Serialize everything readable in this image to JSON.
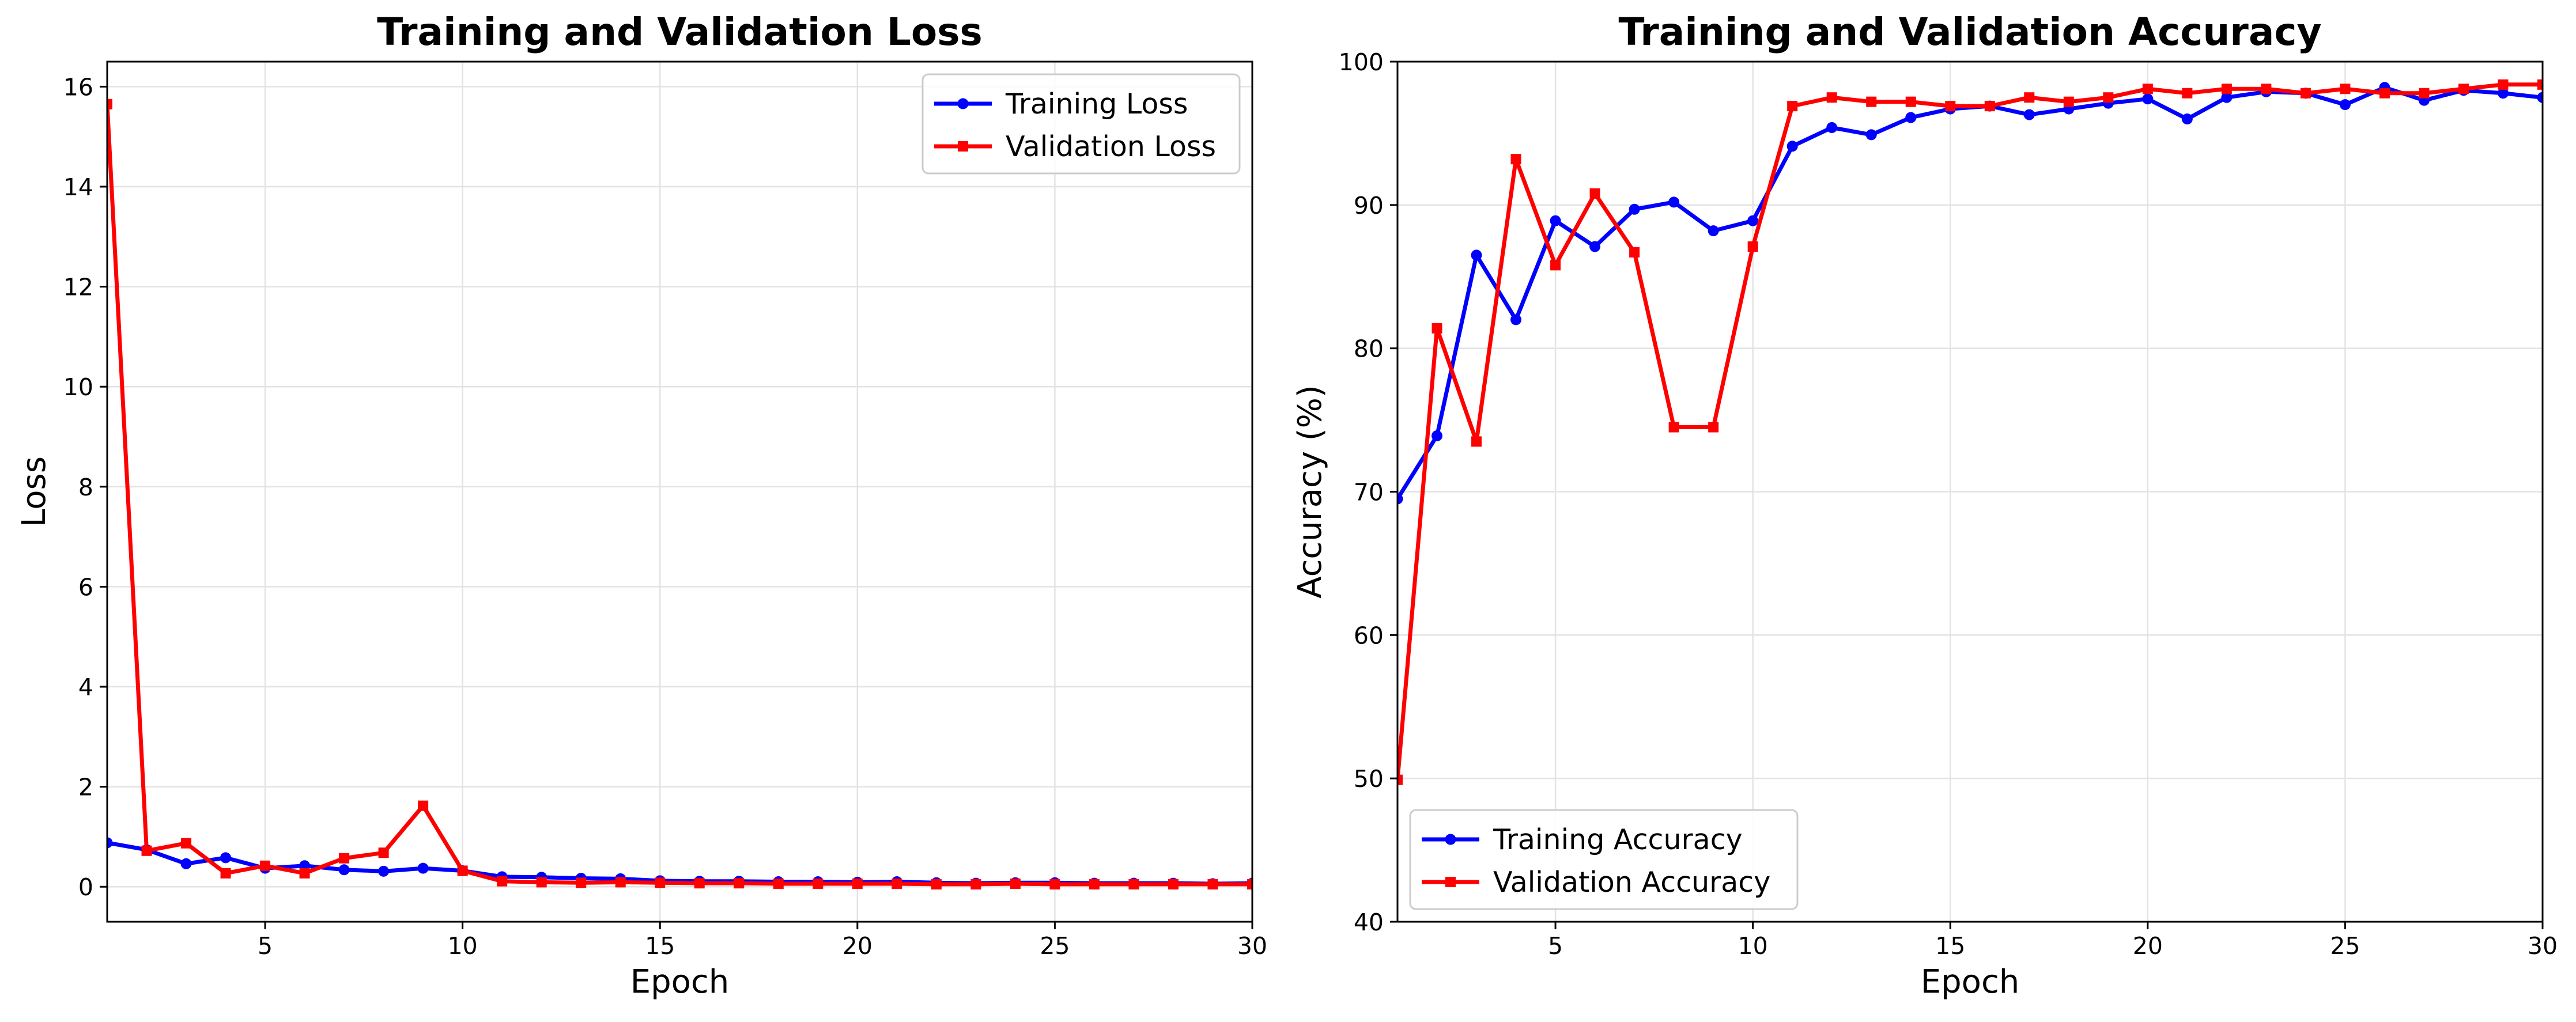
{
  "figure": {
    "panels": [
      {
        "title": "Training and Validation Loss"
      },
      {
        "title": "Training and Validation Accuracy"
      }
    ]
  },
  "chart_data": [
    {
      "type": "line",
      "title": "Training and Validation Loss",
      "xlabel": "Epoch",
      "ylabel": "Loss",
      "xlim": [
        1,
        30
      ],
      "ylim": [
        -0.7,
        16.5
      ],
      "xticks": [
        5,
        10,
        15,
        20,
        25,
        30
      ],
      "yticks": [
        0,
        2,
        4,
        6,
        8,
        10,
        12,
        14,
        16
      ],
      "grid": true,
      "legend": "top-right",
      "x": [
        1,
        2,
        3,
        4,
        5,
        6,
        7,
        8,
        9,
        10,
        11,
        12,
        13,
        14,
        15,
        16,
        17,
        18,
        19,
        20,
        21,
        22,
        23,
        24,
        25,
        26,
        27,
        28,
        29,
        30
      ],
      "series": [
        {
          "name": "Training Loss",
          "color": "#0000ff",
          "marker": "circle",
          "values": [
            0.88,
            0.74,
            0.46,
            0.58,
            0.37,
            0.42,
            0.34,
            0.31,
            0.37,
            0.32,
            0.2,
            0.19,
            0.17,
            0.16,
            0.12,
            0.11,
            0.11,
            0.1,
            0.1,
            0.09,
            0.1,
            0.08,
            0.07,
            0.08,
            0.08,
            0.07,
            0.07,
            0.07,
            0.06,
            0.07
          ]
        },
        {
          "name": "Validation Loss",
          "color": "#ff0000",
          "marker": "square",
          "values": [
            15.65,
            0.72,
            0.87,
            0.27,
            0.42,
            0.27,
            0.57,
            0.68,
            1.62,
            0.32,
            0.11,
            0.09,
            0.08,
            0.09,
            0.08,
            0.07,
            0.07,
            0.06,
            0.06,
            0.06,
            0.06,
            0.05,
            0.05,
            0.06,
            0.05,
            0.05,
            0.05,
            0.05,
            0.05,
            0.05
          ]
        }
      ]
    },
    {
      "type": "line",
      "title": "Training and Validation Accuracy",
      "xlabel": "Epoch",
      "ylabel": "Accuracy (%)",
      "xlim": [
        1,
        30
      ],
      "ylim": [
        40,
        100
      ],
      "xticks": [
        5,
        10,
        15,
        20,
        25,
        30
      ],
      "yticks": [
        40,
        50,
        60,
        70,
        80,
        90,
        100
      ],
      "grid": true,
      "legend": "bottom-left",
      "x": [
        1,
        2,
        3,
        4,
        5,
        6,
        7,
        8,
        9,
        10,
        11,
        12,
        13,
        14,
        15,
        16,
        17,
        18,
        19,
        20,
        21,
        22,
        23,
        24,
        25,
        26,
        27,
        28,
        29,
        30
      ],
      "series": [
        {
          "name": "Training Accuracy",
          "color": "#0000ff",
          "marker": "circle",
          "values": [
            69.5,
            73.9,
            86.5,
            82.0,
            88.9,
            87.1,
            89.7,
            90.2,
            88.2,
            88.9,
            94.1,
            95.4,
            94.9,
            96.1,
            96.7,
            96.9,
            96.3,
            96.7,
            97.1,
            97.4,
            96.0,
            97.5,
            97.9,
            97.8,
            97.0,
            98.2,
            97.3,
            98.0,
            97.8,
            97.5
          ]
        },
        {
          "name": "Validation Accuracy",
          "color": "#ff0000",
          "marker": "square",
          "values": [
            49.9,
            81.4,
            73.5,
            93.2,
            85.8,
            90.8,
            86.7,
            74.5,
            74.5,
            87.1,
            96.9,
            97.5,
            97.2,
            97.2,
            96.9,
            96.9,
            97.5,
            97.2,
            97.5,
            98.1,
            97.8,
            98.1,
            98.1,
            97.8,
            98.1,
            97.8,
            97.8,
            98.1,
            98.4,
            98.4
          ]
        }
      ]
    }
  ]
}
